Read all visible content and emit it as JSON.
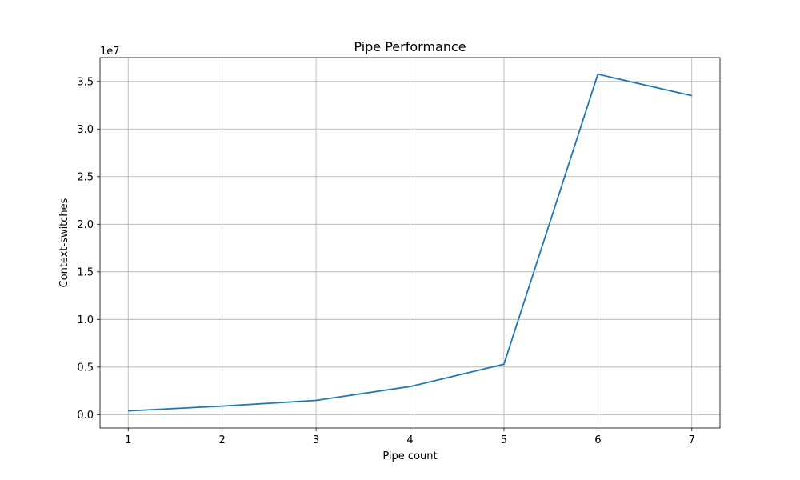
{
  "chart_data": {
    "type": "line",
    "title": "Pipe Performance",
    "xlabel": "Pipe count",
    "ylabel": "Context-switches",
    "y_offset_label": "1e7",
    "x": [
      1,
      2,
      3,
      4,
      5,
      6,
      7
    ],
    "series": [
      {
        "values": [
          400000,
          900000,
          1500000,
          2950000,
          5300000,
          35750000,
          33500000
        ],
        "color": "#1f77b4"
      }
    ],
    "xlim": [
      0.7,
      7.3
    ],
    "ylim": [
      -1400000,
      37500000
    ],
    "x_ticks": [
      1,
      2,
      3,
      4,
      5,
      6,
      7
    ],
    "x_tick_labels": [
      "1",
      "2",
      "3",
      "4",
      "5",
      "6",
      "7"
    ],
    "y_ticks": [
      0,
      5000000,
      10000000,
      15000000,
      20000000,
      25000000,
      30000000,
      35000000
    ],
    "y_tick_labels": [
      "0.0",
      "0.5",
      "1.0",
      "1.5",
      "2.0",
      "2.5",
      "3.0",
      "3.5"
    ],
    "grid": true,
    "grid_color": "#b0b0b0",
    "axis_color": "#000000"
  }
}
